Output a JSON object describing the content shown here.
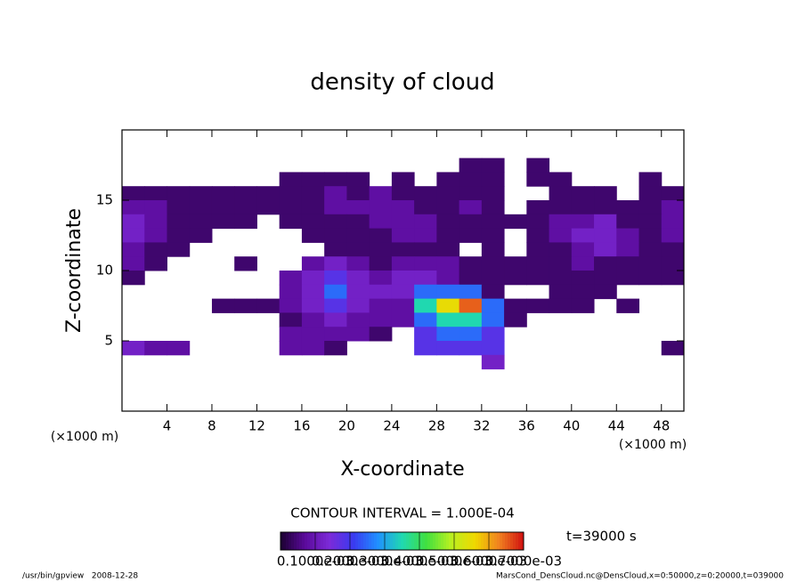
{
  "chart_data": {
    "type": "heatmap",
    "title": "density of cloud",
    "x_label": "X-coordinate",
    "y_label": "Z-coordinate",
    "x_unit": "(×1000 m)",
    "y_unit": "(×1000 m)",
    "xlim": [
      0,
      50
    ],
    "ylim": [
      0,
      20
    ],
    "xticks": [
      4,
      8,
      12,
      16,
      20,
      24,
      28,
      32,
      36,
      40,
      44,
      48
    ],
    "yticks": [
      5,
      10,
      15
    ],
    "x": [
      1,
      3,
      5,
      7,
      9,
      11,
      13,
      15,
      17,
      19,
      21,
      23,
      25,
      27,
      29,
      31,
      33,
      35,
      37,
      39,
      41,
      43,
      45,
      47,
      49
    ],
    "y": [
      17.5,
      16.5,
      15.5,
      14.5,
      13.5,
      12.5,
      11.5,
      10.5,
      9.5,
      8.5,
      7.5,
      6.5,
      5.5,
      4.5,
      3.5
    ],
    "values": [
      [
        null,
        null,
        null,
        null,
        null,
        null,
        null,
        null,
        null,
        null,
        null,
        null,
        null,
        null,
        null,
        4e-05,
        4e-05,
        null,
        4e-05,
        null,
        null,
        null,
        null,
        null,
        null
      ],
      [
        null,
        null,
        null,
        null,
        null,
        null,
        null,
        4e-05,
        4e-05,
        4e-05,
        4e-05,
        null,
        4e-05,
        null,
        4e-05,
        4e-05,
        4e-05,
        null,
        4e-05,
        4e-05,
        null,
        null,
        null,
        4e-05,
        null
      ],
      [
        4e-05,
        4e-05,
        4e-05,
        4e-05,
        4e-05,
        4e-05,
        4e-05,
        4e-05,
        4e-05,
        8e-05,
        4e-05,
        8e-05,
        4e-05,
        4e-05,
        4e-05,
        4e-05,
        4e-05,
        null,
        null,
        4e-05,
        4e-05,
        4e-05,
        null,
        4e-05,
        4e-05
      ],
      [
        8e-05,
        8e-05,
        4e-05,
        4e-05,
        4e-05,
        4e-05,
        4e-05,
        4e-05,
        4e-05,
        8e-05,
        8e-05,
        8e-05,
        8e-05,
        4e-05,
        4e-05,
        8e-05,
        4e-05,
        null,
        4e-05,
        4e-05,
        4e-05,
        4e-05,
        4e-05,
        4e-05,
        8e-05
      ],
      [
        0.00012,
        8e-05,
        4e-05,
        4e-05,
        4e-05,
        4e-05,
        null,
        4e-05,
        4e-05,
        4e-05,
        4e-05,
        8e-05,
        8e-05,
        8e-05,
        4e-05,
        4e-05,
        4e-05,
        4e-05,
        4e-05,
        8e-05,
        8e-05,
        0.00012,
        4e-05,
        4e-05,
        8e-05
      ],
      [
        0.00012,
        8e-05,
        4e-05,
        4e-05,
        null,
        null,
        null,
        null,
        4e-05,
        4e-05,
        4e-05,
        4e-05,
        8e-05,
        8e-05,
        4e-05,
        4e-05,
        4e-05,
        null,
        4e-05,
        8e-05,
        0.00012,
        0.00012,
        8e-05,
        4e-05,
        8e-05
      ],
      [
        8e-05,
        4e-05,
        4e-05,
        null,
        null,
        null,
        null,
        null,
        null,
        4e-05,
        4e-05,
        4e-05,
        4e-05,
        4e-05,
        4e-05,
        null,
        4e-05,
        null,
        4e-05,
        4e-05,
        8e-05,
        0.00012,
        8e-05,
        4e-05,
        4e-05
      ],
      [
        8e-05,
        4e-05,
        null,
        null,
        null,
        4e-05,
        null,
        null,
        8e-05,
        0.00012,
        8e-05,
        4e-05,
        8e-05,
        8e-05,
        8e-05,
        4e-05,
        4e-05,
        4e-05,
        4e-05,
        4e-05,
        8e-05,
        4e-05,
        4e-05,
        4e-05,
        4e-05
      ],
      [
        4e-05,
        null,
        null,
        null,
        null,
        null,
        null,
        8e-05,
        0.00012,
        0.00018,
        0.00012,
        8e-05,
        0.00012,
        0.00012,
        8e-05,
        4e-05,
        4e-05,
        4e-05,
        4e-05,
        4e-05,
        4e-05,
        4e-05,
        4e-05,
        4e-05,
        4e-05
      ],
      [
        null,
        null,
        null,
        null,
        null,
        null,
        null,
        8e-05,
        0.00012,
        0.00025,
        0.00012,
        0.00012,
        0.00012,
        0.00025,
        0.00025,
        0.00025,
        4e-05,
        null,
        null,
        4e-05,
        4e-05,
        4e-05,
        null,
        null,
        null
      ],
      [
        null,
        null,
        null,
        null,
        4e-05,
        4e-05,
        4e-05,
        8e-05,
        0.00012,
        0.00018,
        0.00012,
        8e-05,
        8e-05,
        0.00035,
        0.00055,
        0.00065,
        0.00025,
        4e-05,
        4e-05,
        4e-05,
        4e-05,
        null,
        4e-05,
        null,
        null
      ],
      [
        null,
        null,
        null,
        null,
        null,
        null,
        null,
        4e-05,
        8e-05,
        0.00012,
        8e-05,
        8e-05,
        8e-05,
        0.00025,
        0.00035,
        0.00035,
        0.00025,
        4e-05,
        null,
        null,
        null,
        null,
        null,
        null,
        null
      ],
      [
        null,
        null,
        null,
        null,
        null,
        null,
        null,
        8e-05,
        8e-05,
        8e-05,
        8e-05,
        4e-05,
        null,
        0.00018,
        0.00025,
        0.00025,
        0.00018,
        null,
        null,
        null,
        null,
        null,
        null,
        null,
        null
      ],
      [
        0.00012,
        8e-05,
        8e-05,
        null,
        null,
        null,
        null,
        8e-05,
        8e-05,
        4e-05,
        null,
        null,
        null,
        0.00018,
        0.00018,
        0.00018,
        0.00018,
        null,
        null,
        null,
        null,
        null,
        null,
        null,
        4e-05
      ],
      [
        null,
        null,
        null,
        null,
        null,
        null,
        null,
        null,
        null,
        null,
        null,
        null,
        null,
        null,
        null,
        null,
        0.00012,
        null,
        null,
        null,
        null,
        null,
        null,
        null,
        null
      ]
    ],
    "colors": [
      "#1a0030",
      "#5a0a9a",
      "#7d2ad8",
      "#3a3af0",
      "#2090ff",
      "#20d8b0",
      "#40e040",
      "#b8f020",
      "#f0d800",
      "#f08020",
      "#d01010"
    ],
    "clim": [
      0,
      0.0007
    ],
    "colorbar_ticks": [
      {
        "value": 0.0001,
        "label": "0.1000e-03"
      },
      {
        "value": 0.0002,
        "label": "0.2000e-03"
      },
      {
        "value": 0.0003,
        "label": "0.3000e-03"
      },
      {
        "value": 0.0004,
        "label": "0.4000e-03"
      },
      {
        "value": 0.0005,
        "label": "0.5000e-03"
      },
      {
        "value": 0.0006,
        "label": "0.6000e-03"
      },
      {
        "value": 0.0007,
        "label": "0.7000e-03"
      }
    ],
    "contour_interval": "CONTOUR INTERVAL = 1.000E-04",
    "time_label": "t=39000 s",
    "footer_left": "/usr/bin/gpview   2008-12-28",
    "footer_right": "MarsCond_DensCloud.nc@DensCloud,x=0:50000,z=0:20000,t=039000"
  }
}
